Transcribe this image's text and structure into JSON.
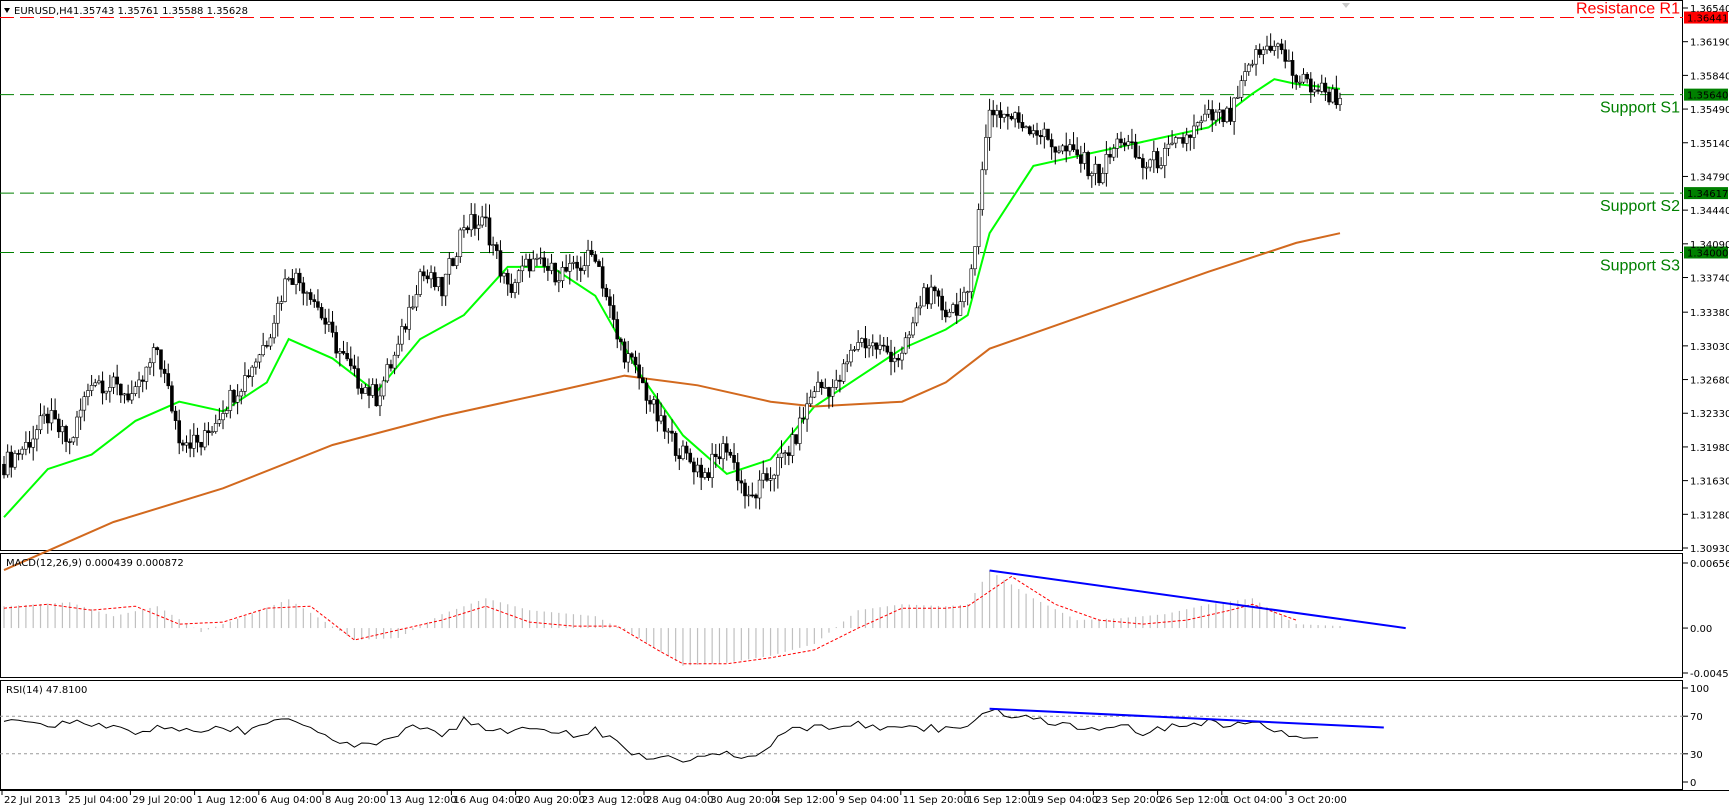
{
  "header": {
    "symbol": "EURUSD,H4",
    "ohlc": "1.35743 1.35761 1.35588 1.35628"
  },
  "colors": {
    "resistance": "#ff0000",
    "support": "#008000",
    "ma_fast": "#00ff00",
    "ma_slow": "#d2691e",
    "trendline": "#0000ff",
    "bull_body": "#ffffff",
    "bear_body": "#000000",
    "macd_hist": "#c0c0c0",
    "macd_signal": "#ff0000",
    "rsi_line": "#000000"
  },
  "macd": {
    "label": "MACD(12,26,9) 0.000439 0.000872"
  },
  "rsi": {
    "label": "RSI(14) 47.8100"
  },
  "chart_data": [
    {
      "type": "candlestick",
      "panel": "price",
      "title": "EURUSD,H4",
      "ylim": [
        1.3093,
        1.3654
      ],
      "y_ticks": [
        "1.36540",
        "1.36190",
        "1.35840",
        "1.35490",
        "1.35140",
        "1.34790",
        "1.34440",
        "1.34090",
        "1.33740",
        "1.33380",
        "1.33030",
        "1.32680",
        "1.32330",
        "1.31980",
        "1.31630",
        "1.31280",
        "1.30930"
      ],
      "x_ticks": [
        "22 Jul 2013",
        "25 Jul 04:00",
        "29 Jul 20:00",
        "1 Aug 12:00",
        "6 Aug 04:00",
        "8 Aug 20:00",
        "13 Aug 12:00",
        "16 Aug 04:00",
        "20 Aug 20:00",
        "23 Aug 12:00",
        "28 Aug 04:00",
        "30 Aug 20:00",
        "4 Sep 12:00",
        "9 Sep 04:00",
        "11 Sep 20:00",
        "16 Sep 12:00",
        "19 Sep 04:00",
        "23 Sep 20:00",
        "26 Sep 12:00",
        "1 Oct 04:00",
        "3 Oct 20:00"
      ],
      "close_path": [
        [
          0,
          1.318
        ],
        [
          6,
          1.32
        ],
        [
          12,
          1.323
        ],
        [
          18,
          1.32
        ],
        [
          24,
          1.327
        ],
        [
          30,
          1.326
        ],
        [
          36,
          1.325
        ],
        [
          42,
          1.33
        ],
        [
          48,
          1.321
        ],
        [
          54,
          1.32
        ],
        [
          60,
          1.324
        ],
        [
          66,
          1.327
        ],
        [
          72,
          1.331
        ],
        [
          78,
          1.338
        ],
        [
          84,
          1.336
        ],
        [
          90,
          1.331
        ],
        [
          96,
          1.327
        ],
        [
          102,
          1.325
        ],
        [
          108,
          1.33
        ],
        [
          114,
          1.338
        ],
        [
          120,
          1.336
        ],
        [
          126,
          1.343
        ],
        [
          132,
          1.343
        ],
        [
          138,
          1.336
        ],
        [
          144,
          1.339
        ],
        [
          150,
          1.338
        ],
        [
          156,
          1.338
        ],
        [
          162,
          1.34
        ],
        [
          168,
          1.331
        ],
        [
          174,
          1.327
        ],
        [
          180,
          1.322
        ],
        [
          186,
          1.319
        ],
        [
          192,
          1.317
        ],
        [
          198,
          1.32
        ],
        [
          204,
          1.314
        ],
        [
          210,
          1.317
        ],
        [
          216,
          1.32
        ],
        [
          222,
          1.326
        ],
        [
          228,
          1.326
        ],
        [
          234,
          1.331
        ],
        [
          240,
          1.33
        ],
        [
          246,
          1.329
        ],
        [
          252,
          1.336
        ],
        [
          258,
          1.334
        ],
        [
          264,
          1.335
        ],
        [
          270,
          1.355
        ],
        [
          276,
          1.354
        ],
        [
          282,
          1.353
        ],
        [
          288,
          1.351
        ],
        [
          294,
          1.35
        ],
        [
          300,
          1.348
        ],
        [
          306,
          1.352
        ],
        [
          312,
          1.349
        ],
        [
          318,
          1.35
        ],
        [
          324,
          1.352
        ],
        [
          330,
          1.354
        ],
        [
          336,
          1.354
        ],
        [
          342,
          1.36
        ],
        [
          348,
          1.362
        ],
        [
          354,
          1.358
        ],
        [
          360,
          1.357
        ],
        [
          366,
          1.356
        ]
      ],
      "series": [
        {
          "name": "",
          "kind": "ma_fast",
          "points": [
            [
              0,
              1.3125
            ],
            [
              12,
              1.3175
            ],
            [
              24,
              1.319
            ],
            [
              36,
              1.3225
            ],
            [
              48,
              1.3245
            ],
            [
              60,
              1.3235
            ],
            [
              72,
              1.3265
            ],
            [
              78,
              1.331
            ],
            [
              90,
              1.329
            ],
            [
              102,
              1.3255
            ],
            [
              114,
              1.331
            ],
            [
              126,
              1.3335
            ],
            [
              138,
              1.3385
            ],
            [
              150,
              1.3385
            ],
            [
              162,
              1.3355
            ],
            [
              174,
              1.3275
            ],
            [
              186,
              1.321
            ],
            [
              198,
              1.317
            ],
            [
              210,
              1.3185
            ],
            [
              222,
              1.324
            ],
            [
              234,
              1.327
            ],
            [
              246,
              1.33
            ],
            [
              258,
              1.332
            ],
            [
              264,
              1.3335
            ],
            [
              270,
              1.342
            ],
            [
              282,
              1.349
            ],
            [
              294,
              1.35
            ],
            [
              306,
              1.351
            ],
            [
              318,
              1.352
            ],
            [
              330,
              1.353
            ],
            [
              342,
              1.3565
            ],
            [
              348,
              1.358
            ],
            [
              354,
              1.3575
            ],
            [
              366,
              1.357
            ]
          ]
        },
        {
          "name": "",
          "kind": "ma_slow",
          "points": [
            [
              0,
              1.307
            ],
            [
              30,
              1.312
            ],
            [
              60,
              1.3155
            ],
            [
              90,
              1.32
            ],
            [
              120,
              1.323
            ],
            [
              150,
              1.3255
            ],
            [
              170,
              1.3272
            ],
            [
              190,
              1.3262
            ],
            [
              210,
              1.3245
            ],
            [
              222,
              1.324
            ],
            [
              246,
              1.3245
            ],
            [
              258,
              1.3265
            ],
            [
              270,
              1.33
            ],
            [
              300,
              1.334
            ],
            [
              330,
              1.338
            ],
            [
              354,
              1.341
            ],
            [
              366,
              1.342
            ]
          ]
        }
      ],
      "levels": [
        {
          "name": "Resistance R1",
          "value": 1.36441,
          "label": "1.36441"
        },
        {
          "name": "Support S1",
          "value": 1.3564,
          "label": "1.35640"
        },
        {
          "name": "Support S2",
          "value": 1.34617,
          "label": "1.34617"
        },
        {
          "name": "Support S3",
          "value": 1.34,
          "label": "1.34000"
        }
      ]
    },
    {
      "type": "bar",
      "panel": "macd",
      "title": "MACD(12,26,9) 0.000439 0.000872",
      "ylim": [
        -0.004531,
        0.006561
      ],
      "y_ticks": [
        "0.006561",
        "0.00",
        "-0.004531"
      ],
      "histogram": [
        [
          0,
          0.0022
        ],
        [
          18,
          0.0026
        ],
        [
          30,
          0.0012
        ],
        [
          42,
          0.0022
        ],
        [
          54,
          -0.0004
        ],
        [
          66,
          0.0012
        ],
        [
          78,
          0.0029
        ],
        [
          96,
          -0.0012
        ],
        [
          108,
          -0.001
        ],
        [
          120,
          0.0014
        ],
        [
          132,
          0.003
        ],
        [
          144,
          0.0018
        ],
        [
          162,
          0.0012
        ],
        [
          174,
          -0.001
        ],
        [
          186,
          -0.0038
        ],
        [
          198,
          -0.0035
        ],
        [
          210,
          -0.0028
        ],
        [
          222,
          -0.0016
        ],
        [
          234,
          0.0018
        ],
        [
          246,
          0.0024
        ],
        [
          258,
          0.0022
        ],
        [
          264,
          0.0024
        ],
        [
          270,
          0.0058
        ],
        [
          282,
          0.003
        ],
        [
          294,
          0.0008
        ],
        [
          306,
          0.001
        ],
        [
          318,
          0.0014
        ],
        [
          330,
          0.0024
        ],
        [
          342,
          0.003
        ],
        [
          354,
          0.0004
        ],
        [
          366,
          0.0002
        ]
      ],
      "signal": [
        [
          0,
          0.002
        ],
        [
          12,
          0.0024
        ],
        [
          24,
          0.0018
        ],
        [
          36,
          0.0022
        ],
        [
          48,
          0.0004
        ],
        [
          60,
          0.0006
        ],
        [
          72,
          0.002
        ],
        [
          84,
          0.0022
        ],
        [
          96,
          -0.0012
        ],
        [
          108,
          -0.0002
        ],
        [
          120,
          0.0008
        ],
        [
          132,
          0.0022
        ],
        [
          144,
          0.0006
        ],
        [
          156,
          0.0002
        ],
        [
          168,
          0.0002
        ],
        [
          180,
          -0.0024
        ],
        [
          186,
          -0.0036
        ],
        [
          198,
          -0.0036
        ],
        [
          210,
          -0.003
        ],
        [
          222,
          -0.0022
        ],
        [
          234,
          0.0
        ],
        [
          246,
          0.002
        ],
        [
          258,
          0.002
        ],
        [
          264,
          0.0022
        ],
        [
          276,
          0.0052
        ],
        [
          288,
          0.0024
        ],
        [
          300,
          0.0008
        ],
        [
          312,
          0.0004
        ],
        [
          324,
          0.0008
        ],
        [
          336,
          0.0018
        ],
        [
          342,
          0.0024
        ],
        [
          354,
          0.0008
        ]
      ],
      "trendline": [
        [
          270,
          0.0058
        ],
        [
          384,
          0.0
        ]
      ]
    },
    {
      "type": "line",
      "panel": "rsi",
      "title": "RSI(14) 47.8100",
      "ylim": [
        0,
        100
      ],
      "y_ticks": [
        "100",
        "70",
        "30",
        "0"
      ],
      "levels": [
        70,
        30
      ],
      "values": [
        [
          0,
          62
        ],
        [
          6,
          66
        ],
        [
          12,
          58
        ],
        [
          18,
          64
        ],
        [
          24,
          60
        ],
        [
          30,
          62
        ],
        [
          36,
          50
        ],
        [
          42,
          58
        ],
        [
          48,
          55
        ],
        [
          54,
          52
        ],
        [
          60,
          58
        ],
        [
          66,
          54
        ],
        [
          72,
          62
        ],
        [
          78,
          70
        ],
        [
          84,
          58
        ],
        [
          90,
          45
        ],
        [
          96,
          40
        ],
        [
          102,
          42
        ],
        [
          108,
          52
        ],
        [
          114,
          60
        ],
        [
          120,
          50
        ],
        [
          126,
          65
        ],
        [
          132,
          58
        ],
        [
          138,
          52
        ],
        [
          144,
          56
        ],
        [
          150,
          54
        ],
        [
          156,
          50
        ],
        [
          162,
          56
        ],
        [
          168,
          40
        ],
        [
          174,
          28
        ],
        [
          180,
          25
        ],
        [
          186,
          24
        ],
        [
          192,
          28
        ],
        [
          198,
          30
        ],
        [
          204,
          25
        ],
        [
          210,
          40
        ],
        [
          216,
          55
        ],
        [
          222,
          60
        ],
        [
          228,
          58
        ],
        [
          234,
          62
        ],
        [
          240,
          55
        ],
        [
          246,
          60
        ],
        [
          252,
          58
        ],
        [
          258,
          56
        ],
        [
          264,
          60
        ],
        [
          270,
          78
        ],
        [
          276,
          72
        ],
        [
          282,
          68
        ],
        [
          288,
          62
        ],
        [
          294,
          58
        ],
        [
          300,
          55
        ],
        [
          306,
          60
        ],
        [
          312,
          52
        ],
        [
          318,
          58
        ],
        [
          324,
          60
        ],
        [
          330,
          64
        ],
        [
          336,
          58
        ],
        [
          342,
          66
        ],
        [
          348,
          52
        ],
        [
          354,
          50
        ],
        [
          360,
          48
        ]
      ],
      "trendline": [
        [
          270,
          78
        ],
        [
          378,
          58
        ]
      ]
    }
  ]
}
